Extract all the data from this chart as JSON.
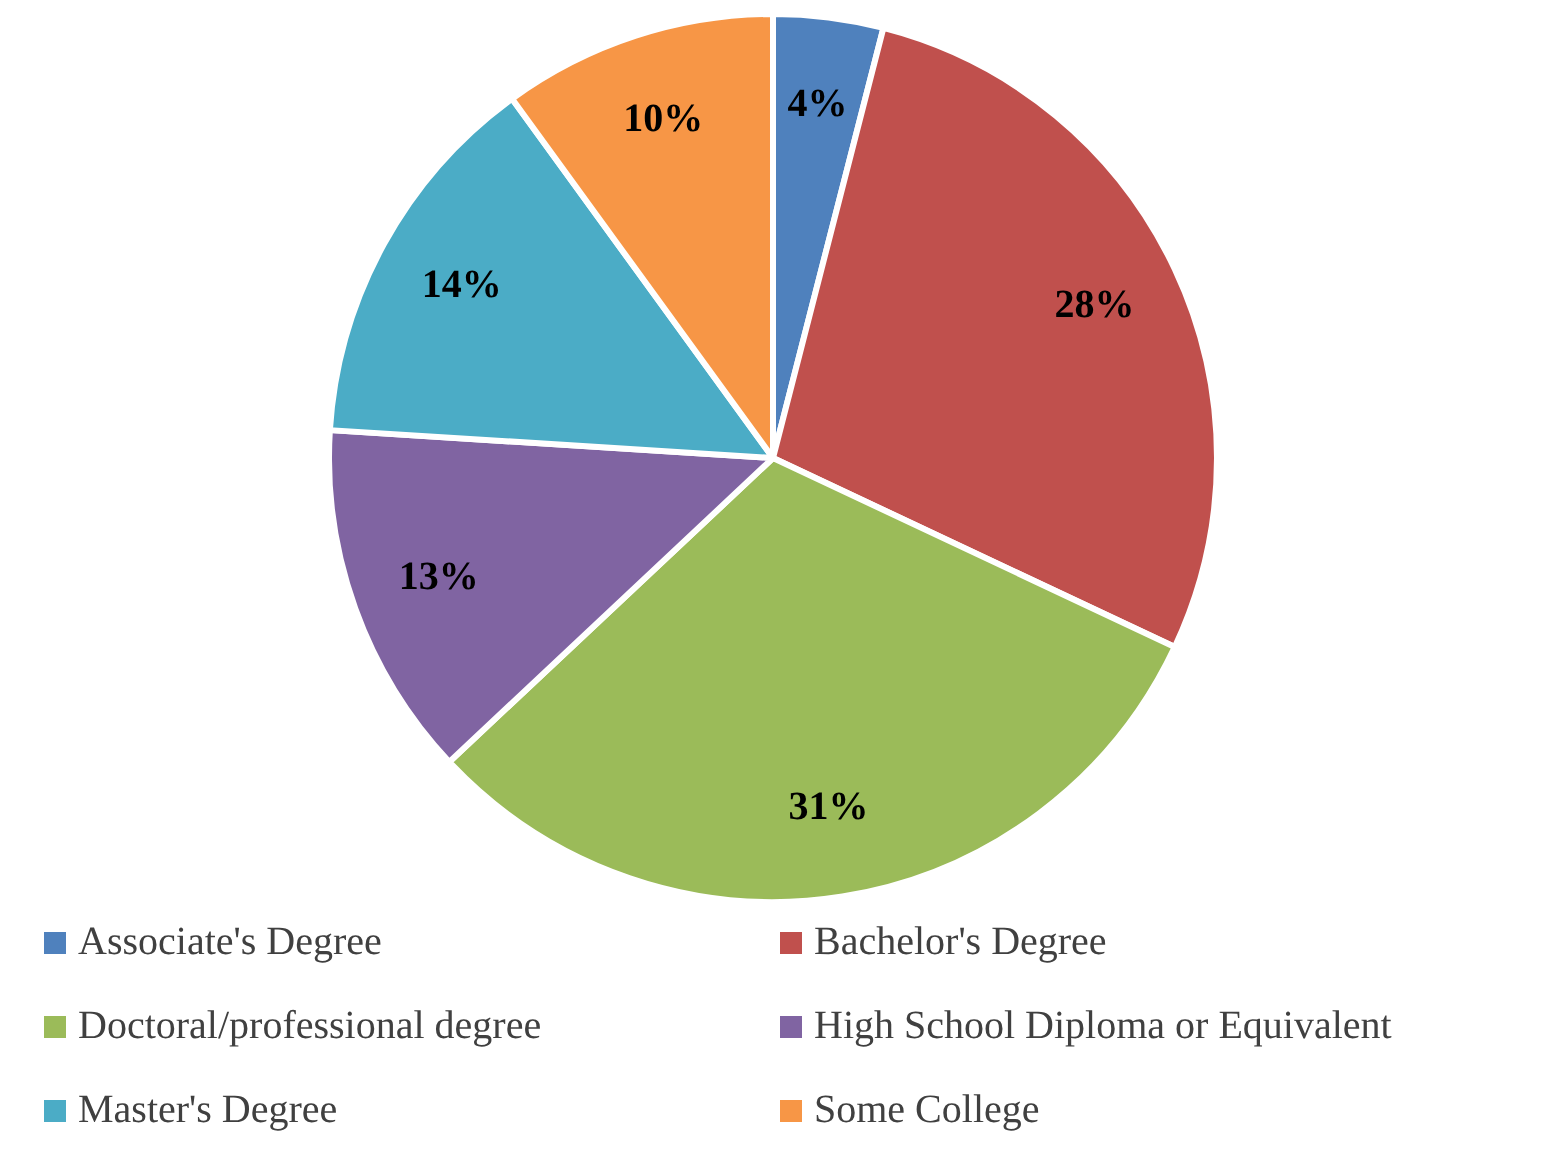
{
  "chart_data": {
    "type": "pie",
    "categories": [
      "Associate's Degree",
      "Bachelor's Degree",
      "Doctoral/professional degree",
      "High School Diploma or Equivalent",
      "Master's Degree",
      "Some College"
    ],
    "values": [
      4,
      28,
      31,
      13,
      14,
      10
    ],
    "colors": [
      "#4f81bd",
      "#c0504d",
      "#9bbb59",
      "#8064a2",
      "#4bacc6",
      "#f79646"
    ],
    "value_labels": [
      "4%",
      "28%",
      "31%",
      "13%",
      "14%",
      "10%"
    ],
    "legend": "bottom"
  }
}
